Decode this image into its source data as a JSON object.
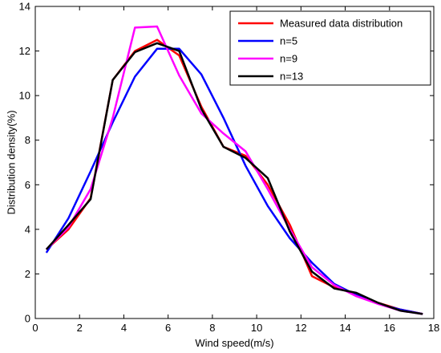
{
  "chart_data": {
    "type": "line",
    "xlabel": "Wind speed(m/s)",
    "ylabel": "Distribution density(%)",
    "xlim": [
      0,
      18
    ],
    "ylim": [
      0,
      14
    ],
    "xticks": [
      0,
      2,
      4,
      6,
      8,
      10,
      12,
      14,
      16,
      18
    ],
    "yticks": [
      0,
      2,
      4,
      6,
      8,
      10,
      12,
      14
    ],
    "grid": false,
    "legend_position": "top-right",
    "series": [
      {
        "name": "Measured data distribution",
        "color": "#ff0000",
        "x": [
          0.5,
          1.5,
          2.5,
          3.5,
          4.5,
          5.5,
          6.5,
          7.5,
          8.5,
          9.5,
          10.5,
          11.5,
          12.5,
          13.5,
          14.5,
          15.5,
          16.5,
          17.5
        ],
        "y": [
          3.1,
          4.0,
          5.4,
          10.7,
          12.0,
          12.5,
          11.8,
          9.5,
          7.7,
          7.3,
          6.0,
          4.2,
          1.9,
          1.4,
          1.1,
          0.7,
          0.4,
          0.2
        ]
      },
      {
        "name": "n=5",
        "color": "#0000ff",
        "x": [
          0.5,
          1.5,
          2.5,
          3.5,
          4.5,
          5.5,
          6.5,
          7.5,
          8.5,
          9.5,
          10.5,
          11.5,
          12.5,
          13.5,
          14.5,
          15.5,
          16.5,
          17.5
        ],
        "y": [
          2.95,
          4.5,
          6.6,
          8.8,
          10.85,
          12.1,
          12.1,
          10.95,
          9.0,
          6.85,
          5.05,
          3.6,
          2.5,
          1.55,
          1.05,
          0.65,
          0.4,
          0.2
        ]
      },
      {
        "name": "n=9",
        "color": "#ff00ff",
        "x": [
          0.5,
          1.5,
          2.5,
          3.5,
          4.5,
          5.5,
          6.5,
          7.5,
          8.5,
          9.5,
          10.5,
          11.5,
          12.5,
          13.5,
          14.5,
          15.5,
          16.5,
          17.5
        ],
        "y": [
          3.1,
          4.1,
          5.8,
          9.0,
          13.05,
          13.1,
          10.9,
          9.2,
          8.3,
          7.5,
          5.8,
          4.0,
          2.3,
          1.5,
          1.0,
          0.65,
          0.35,
          0.2
        ]
      },
      {
        "name": "n=13",
        "color": "#000000",
        "x": [
          0.5,
          1.5,
          2.5,
          3.5,
          4.5,
          5.5,
          6.5,
          7.5,
          8.5,
          9.5,
          10.5,
          11.5,
          12.5,
          13.5,
          14.5,
          15.5,
          16.5,
          17.5
        ],
        "y": [
          3.1,
          4.2,
          5.35,
          10.7,
          11.95,
          12.35,
          12.0,
          9.4,
          7.7,
          7.2,
          6.3,
          3.9,
          2.1,
          1.35,
          1.15,
          0.7,
          0.35,
          0.2
        ]
      }
    ]
  }
}
